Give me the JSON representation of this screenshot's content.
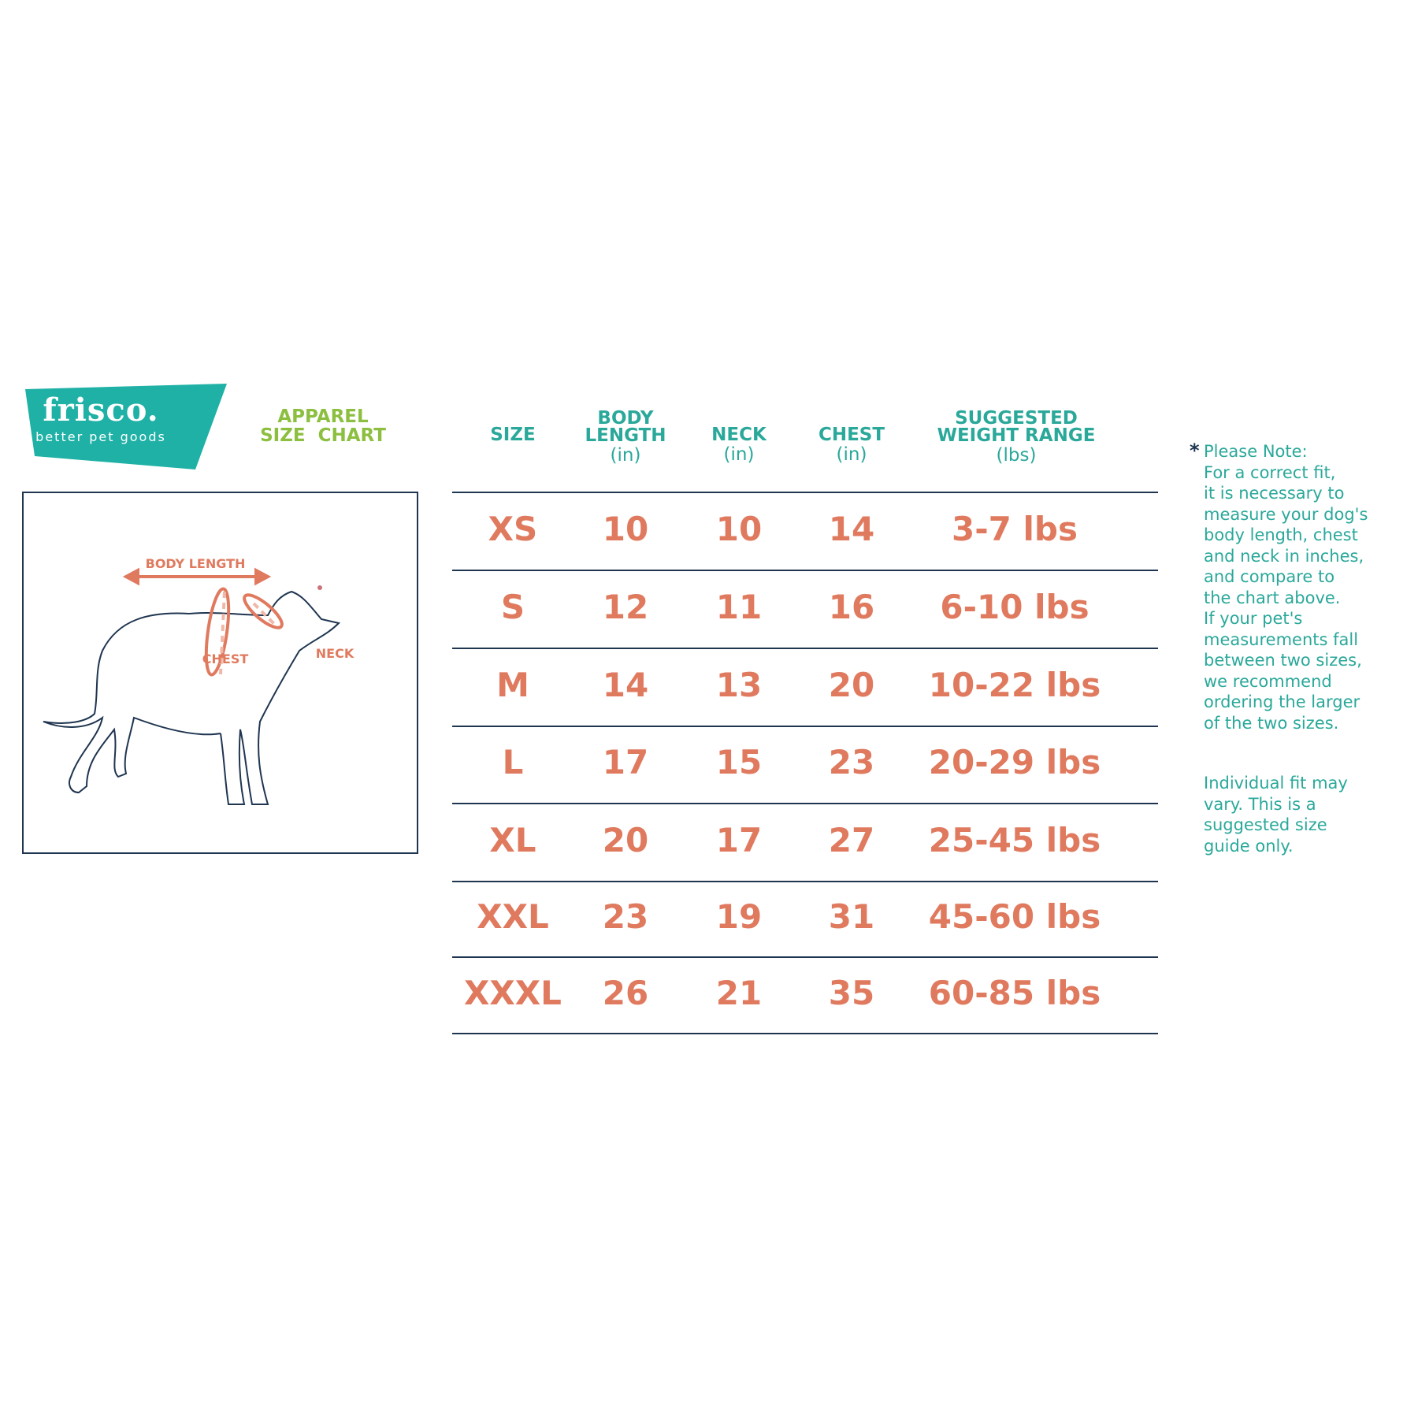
{
  "logo": {
    "brand": "frisco.",
    "tagline": "better pet goods",
    "color": "#1fb1a6"
  },
  "title": {
    "line1": "APPAREL",
    "line2": "SIZE  CHART"
  },
  "diagram": {
    "labels": {
      "body_length": "BODY LENGTH",
      "chest": "CHEST",
      "neck": "NECK"
    }
  },
  "table": {
    "headers": [
      {
        "line1": "SIZE",
        "line2": "",
        "unit": ""
      },
      {
        "line1": "BODY",
        "line2": "LENGTH",
        "unit": "(in)"
      },
      {
        "line1": "NECK",
        "line2": "",
        "unit": "(in)"
      },
      {
        "line1": "CHEST",
        "line2": "",
        "unit": "(in)"
      },
      {
        "line1": "SUGGESTED",
        "line2": "WEIGHT RANGE",
        "unit": "(lbs)"
      }
    ],
    "rows": [
      [
        "XS",
        "10",
        "10",
        "14",
        "3-7 lbs"
      ],
      [
        "S",
        "12",
        "11",
        "16",
        "6-10 lbs"
      ],
      [
        "M",
        "14",
        "13",
        "20",
        "10-22 lbs"
      ],
      [
        "L",
        "17",
        "15",
        "23",
        "20-29 lbs"
      ],
      [
        "XL",
        "20",
        "17",
        "27",
        "25-45 lbs"
      ],
      [
        "XXL",
        "23",
        "19",
        "31",
        "45-60 lbs"
      ],
      [
        "XXXL",
        "26",
        "21",
        "35",
        "60-85 lbs"
      ]
    ]
  },
  "note": {
    "asterisk": "*",
    "lines": [
      "Please Note:",
      "For a correct fit,",
      "it is necessary to",
      "measure your dog's",
      "body length, chest",
      "and neck in inches,",
      "and compare to",
      "the chart above.",
      "If your pet's",
      "measurements fall",
      "between two sizes,",
      "we recommend",
      "ordering the larger",
      "of the two sizes."
    ],
    "disclaimer": [
      "Individual fit may",
      "vary. This is a",
      "suggested size",
      "guide only."
    ]
  },
  "colors": {
    "teal": "#2aa89a",
    "green": "#8cbf3f",
    "coral": "#e07a5f",
    "navy": "#1f3550"
  }
}
